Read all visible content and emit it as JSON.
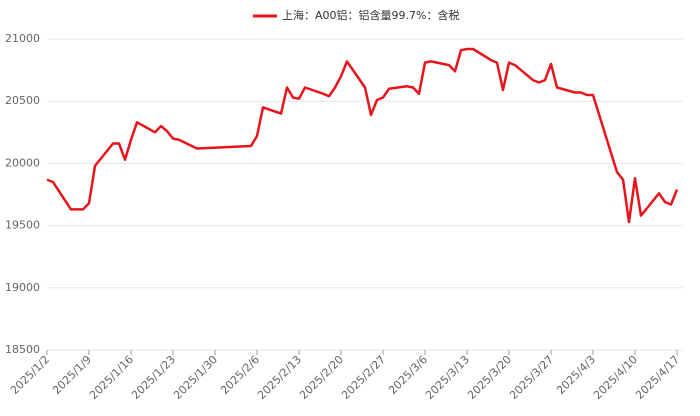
{
  "chart_data": {
    "type": "line",
    "color": "#e8141b",
    "grid": true,
    "series": [
      {
        "name": "上海：A00铝：铝含量99.7%：含税",
        "color": "#e8141b",
        "x": [
          "2025/1/2",
          "2025/1/3",
          "2025/1/6",
          "2025/1/8",
          "2025/1/9",
          "2025/1/10",
          "2025/1/13",
          "2025/1/14",
          "2025/1/15",
          "2025/1/16",
          "2025/1/17",
          "2025/1/20",
          "2025/1/21",
          "2025/1/22",
          "2025/1/23",
          "2025/1/24",
          "2025/1/27",
          "2025/2/5",
          "2025/2/6",
          "2025/2/7",
          "2025/2/10",
          "2025/2/11",
          "2025/2/12",
          "2025/2/13",
          "2025/2/14",
          "2025/2/17",
          "2025/2/18",
          "2025/2/19",
          "2025/2/20",
          "2025/2/21",
          "2025/2/24",
          "2025/2/25",
          "2025/2/26",
          "2025/2/27",
          "2025/2/28",
          "2025/3/3",
          "2025/3/4",
          "2025/3/5",
          "2025/3/6",
          "2025/3/7",
          "2025/3/10",
          "2025/3/11",
          "2025/3/12",
          "2025/3/13",
          "2025/3/14",
          "2025/3/17",
          "2025/3/18",
          "2025/3/19",
          "2025/3/20",
          "2025/3/21",
          "2025/3/24",
          "2025/3/25",
          "2025/3/26",
          "2025/3/27",
          "2025/3/28",
          "2025/3/31",
          "2025/4/1",
          "2025/4/2",
          "2025/4/3",
          "2025/4/7",
          "2025/4/8",
          "2025/4/9",
          "2025/4/10",
          "2025/4/11",
          "2025/4/14",
          "2025/4/15",
          "2025/4/16",
          "2025/4/17"
        ],
        "values": [
          19870,
          19850,
          19630,
          19630,
          19680,
          19980,
          20160,
          20160,
          20030,
          20190,
          20330,
          20250,
          20300,
          20260,
          20200,
          20190,
          20120,
          20140,
          20220,
          20450,
          20400,
          20610,
          20530,
          20520,
          20610,
          20560,
          20540,
          20610,
          20700,
          20820,
          20610,
          20390,
          20510,
          20530,
          20600,
          20620,
          20610,
          20560,
          20810,
          20820,
          20790,
          20740,
          20910,
          20920,
          20920,
          20830,
          20810,
          20590,
          20810,
          20790,
          20670,
          20650,
          20670,
          20800,
          20610,
          20570,
          20570,
          20550,
          20550,
          19930,
          19870,
          19530,
          19880,
          19580,
          19760,
          19690,
          19670,
          19790
        ]
      }
    ],
    "xlim": [
      "2025/1/2",
      "2025/4/17"
    ],
    "xticks": [
      "2025/1/2",
      "2025/1/9",
      "2025/1/16",
      "2025/1/23",
      "2025/1/30",
      "2025/2/6",
      "2025/2/13",
      "2025/2/20",
      "2025/2/27",
      "2025/3/6",
      "2025/3/13",
      "2025/3/20",
      "2025/3/27",
      "2025/4/3",
      "2025/4/10",
      "2025/4/17"
    ],
    "ylim": [
      18500,
      21000
    ],
    "yticks": [
      18500,
      19000,
      19500,
      20000,
      20500,
      21000
    ]
  }
}
